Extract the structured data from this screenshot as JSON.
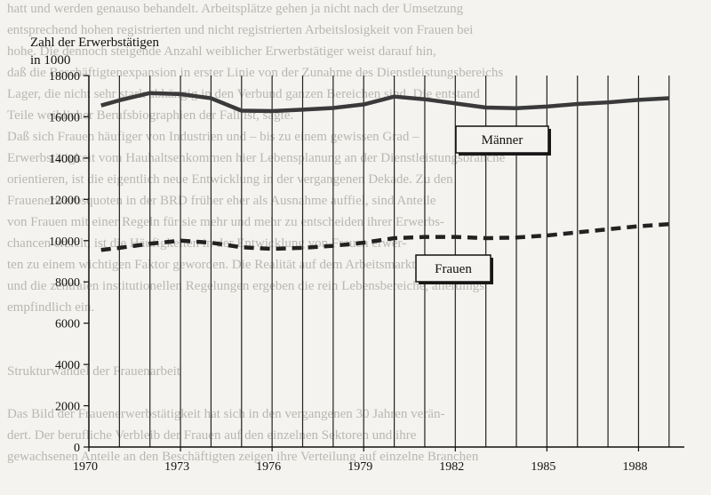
{
  "background_text": [
    "hatt und werden genauso behandelt. Arbeitsplätze gehen ja nicht nach der Umsetzung",
    "entsprechend hohen registrierten und nicht registrierten Arbeitslosigkeit von Frauen bei",
    "hohe. Die dennoch steigende Anzahl weiblicher Erwerbstätiger weist darauf hin,",
    "daß die Beschäftigtenexpansion in erster Linie von der Zunahme des Dienstleistungsbereichs",
    "Lager, die nicht sehr stark abhängig in den Verbund ganzen Bereichen sind. Die entstand",
    "Teile weiblicher Berufsbiographien der Fall ist, sagte.",
    "Daß sich Frauen häufiger von Industrien und – bis zu einem gewissen Grad –",
    "Erwerbstätigkeit vom Hauhaltsenkommen hier Lebensplanung an der Dienstleistungsbranche",
    "orientieren, ist die eigentlich neue Entwicklung in der vergangenen Dekade. Zu den",
    "Frauenerwerbsquoten in der BRD früher eher als Ausnahme auffiel, sind Anteile",
    "von Frauen mit einer Regeln für sie mehr und mehr zu entscheiden ihrer Erwerbs-",
    "chancen erzielt, ist die Häufigkeiten in der Entwicklung von Frauen erwer-",
    "ten zu einem wichtigen Faktor geworden. Die Realität auf dem Arbeitsmarkt",
    "und die zentralen institutionellen Regelungen ergeben die rein Lebensbereiche, allerdings",
    "empfindlich ein.",
    "",
    "",
    "Strukturwandel der Frauenarbeit",
    "",
    "Das Bild der Frauenerwerbstätigkeit hat sich in den vergangenen 30 Jahren verän-",
    "dert. Der berufliche Verbleib der Frauen auf den einzelnen Sektoren und ihre",
    "gewachsenen Anteile an den Beschäftigten zeigen ihre Verteilung auf einzelne Branchen"
  ],
  "chart_data": {
    "type": "line",
    "title": "Zahl der Erwerbstätigen",
    "ylabel": "in 1000",
    "xlim": [
      1970,
      1989.5
    ],
    "ylim": [
      0,
      18000
    ],
    "yticks": [
      0,
      2000,
      4000,
      6000,
      8000,
      10000,
      12000,
      14000,
      16000,
      18000
    ],
    "ytick_labels": [
      "0",
      "2000",
      "4000",
      "6000",
      "8000",
      "10000",
      "12000",
      "14000",
      "16000",
      "18000"
    ],
    "xticks": [
      1970,
      1973,
      1976,
      1979,
      1982,
      1985,
      1988
    ],
    "xtick_labels": [
      "1970",
      "1973",
      "1976",
      "1979",
      "1982",
      "1985",
      "1988"
    ],
    "vertical_gridlines_every_year": true,
    "x": [
      1970.4,
      1971,
      1972,
      1973,
      1974,
      1975,
      1976,
      1977,
      1978,
      1979,
      1980,
      1981,
      1982,
      1983,
      1984,
      1985,
      1986,
      1987,
      1988,
      1989
    ],
    "series": [
      {
        "name": "Männer",
        "style": "solid",
        "color": "#3a3a3a",
        "values": [
          16550,
          16800,
          17150,
          17100,
          16900,
          16300,
          16280,
          16350,
          16430,
          16600,
          16980,
          16850,
          16650,
          16450,
          16420,
          16500,
          16620,
          16700,
          16820,
          16900
        ]
      },
      {
        "name": "Frauen",
        "style": "dashed",
        "color": "#222222",
        "values": [
          9550,
          9650,
          9850,
          10000,
          9900,
          9680,
          9600,
          9650,
          9750,
          9900,
          10120,
          10180,
          10180,
          10120,
          10150,
          10250,
          10400,
          10550,
          10700,
          10800
        ]
      }
    ],
    "legend": [
      {
        "label": "Männer",
        "placement": "below-male-line"
      },
      {
        "label": "Frauen",
        "placement": "below-female-line"
      }
    ],
    "grid": "vertical"
  }
}
